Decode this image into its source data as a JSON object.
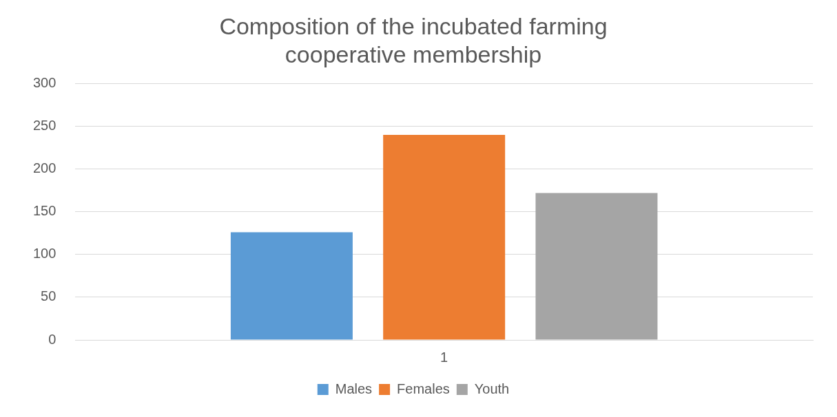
{
  "chart_data": {
    "type": "bar",
    "title": [
      "Composition of the incubated farming",
      "cooperative membership"
    ],
    "categories": [
      "1"
    ],
    "series": [
      {
        "name": "Males",
        "color": "#5b9bd5",
        "values": [
          126
        ]
      },
      {
        "name": "Females",
        "color": "#ed7d31",
        "values": [
          240
        ]
      },
      {
        "name": "Youth",
        "color": "#a5a5a5",
        "values": [
          172
        ]
      }
    ],
    "ylim": [
      0,
      300
    ],
    "yticks": [
      0,
      50,
      100,
      150,
      200,
      250,
      300
    ],
    "grid": "y",
    "legend": "bottom"
  }
}
